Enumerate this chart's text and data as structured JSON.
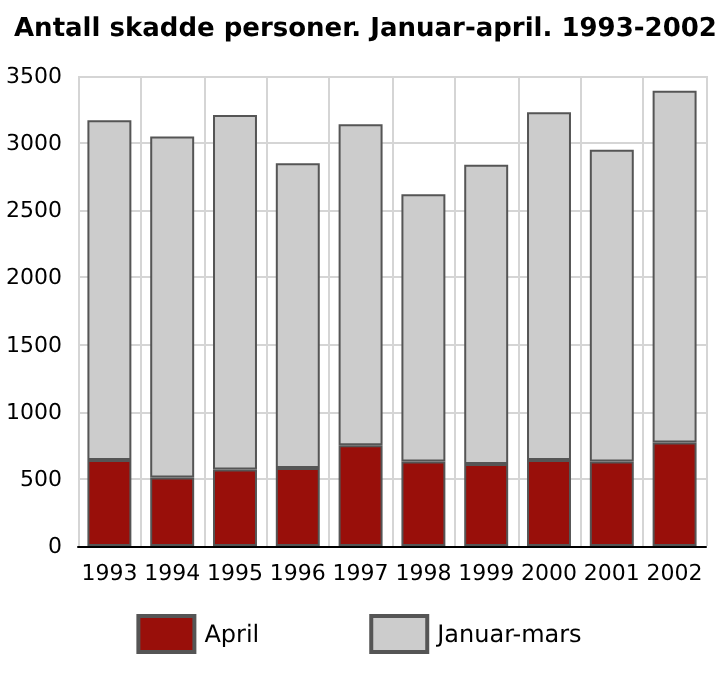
{
  "chart_data": {
    "type": "bar",
    "title": "Antall skadde personer. Januar-april. 1993-2002",
    "categories": [
      "1993",
      "1994",
      "1995",
      "1996",
      "1997",
      "1998",
      "1999",
      "2000",
      "2001",
      "2002"
    ],
    "series": [
      {
        "name": "April",
        "color": "#990f0a",
        "values": [
          640,
          510,
          570,
          580,
          750,
          630,
          610,
          640,
          630,
          770
        ]
      },
      {
        "name": "Januar-mars",
        "color": "#cccccc",
        "values": [
          2530,
          2540,
          2640,
          2270,
          2390,
          1990,
          2230,
          2590,
          2320,
          2620
        ]
      }
    ],
    "stacked": true,
    "ylim": [
      0,
      3500
    ],
    "yticks": [
      0,
      500,
      1000,
      1500,
      2000,
      2500,
      3000,
      3500
    ],
    "grid": true,
    "legend": "bottom"
  }
}
